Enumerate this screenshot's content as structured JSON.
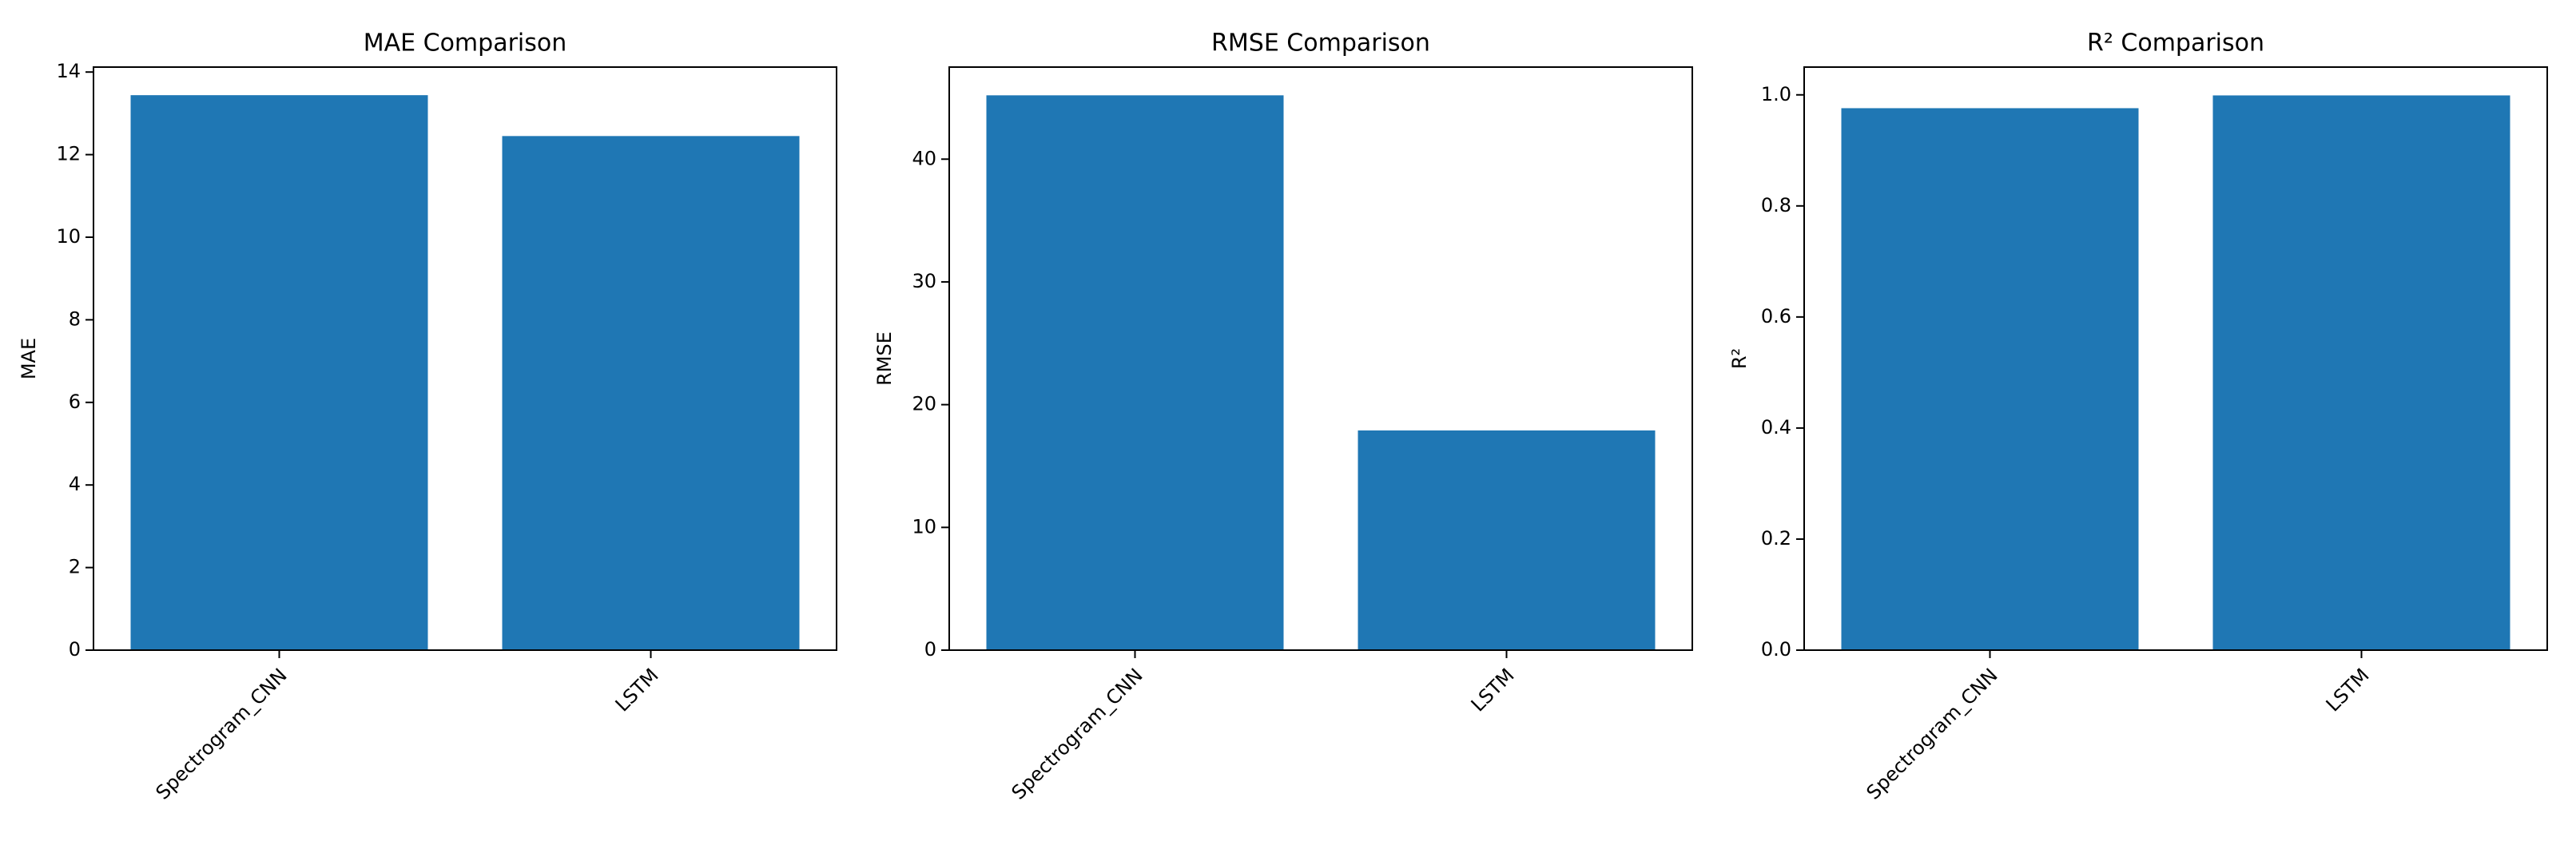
{
  "chart_data": [
    {
      "type": "bar",
      "title": "MAE Comparison",
      "y_label": "MAE",
      "categories": [
        "Spectrogram_CNN",
        "LSTM"
      ],
      "values": [
        13.44,
        12.45
      ],
      "color": "#1f77b4",
      "ylim": [
        0,
        14.12
      ],
      "yticks": [
        0,
        2,
        4,
        6,
        8,
        10,
        12,
        14
      ],
      "grid": false
    },
    {
      "type": "bar",
      "title": "RMSE Comparison",
      "y_label": "RMSE",
      "categories": [
        "Spectrogram_CNN",
        "LSTM"
      ],
      "values": [
        45.2,
        17.9
      ],
      "color": "#1f77b4",
      "ylim": [
        0,
        47.5
      ],
      "yticks": [
        0,
        10,
        20,
        30,
        40
      ],
      "grid": false
    },
    {
      "type": "bar",
      "title": "R² Comparison",
      "y_label": "R²",
      "categories": [
        "Spectrogram_CNN",
        "LSTM"
      ],
      "values": [
        0.976,
        0.999
      ],
      "color": "#1f77b4",
      "ylim": [
        0,
        1.05
      ],
      "yticks": [
        {
          "value": 0,
          "label": "0.0"
        },
        0.2,
        0.4,
        0.6,
        0.8,
        {
          "value": 1,
          "label": "1.0"
        }
      ],
      "grid": false
    }
  ]
}
